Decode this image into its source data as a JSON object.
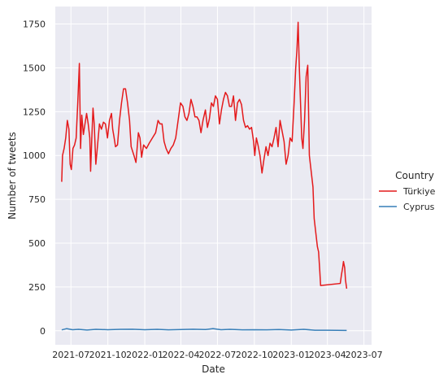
{
  "chart_data": {
    "type": "line",
    "title": "",
    "xlabel": "Date",
    "ylabel": "Number of tweets",
    "ylim": [
      -80,
      1850
    ],
    "xlim": [
      "2021-05-23",
      "2023-07-20"
    ],
    "grid": true,
    "legend": {
      "title": "Country",
      "placement": "right"
    },
    "x_ticks": [
      "2021-07",
      "2021-10",
      "2022-01",
      "2022-04",
      "2022-07",
      "2022-10",
      "2023-01",
      "2023-04",
      "2023-07"
    ],
    "y_ticks": [
      0,
      250,
      500,
      750,
      1000,
      1250,
      1500,
      1750
    ],
    "series": [
      {
        "name": "Türkiye",
        "color": "#e41a1c",
        "points": [
          [
            "2021-06-08",
            850
          ],
          [
            "2021-06-10",
            1000
          ],
          [
            "2021-06-14",
            1040
          ],
          [
            "2021-06-18",
            1100
          ],
          [
            "2021-06-22",
            1200
          ],
          [
            "2021-06-26",
            1150
          ],
          [
            "2021-06-29",
            950
          ],
          [
            "2021-07-02",
            920
          ],
          [
            "2021-07-06",
            1040
          ],
          [
            "2021-07-10",
            1060
          ],
          [
            "2021-07-14",
            1100
          ],
          [
            "2021-07-18",
            1300
          ],
          [
            "2021-07-22",
            1525
          ],
          [
            "2021-07-25",
            1040
          ],
          [
            "2021-07-28",
            1230
          ],
          [
            "2021-08-01",
            1120
          ],
          [
            "2021-08-05",
            1180
          ],
          [
            "2021-08-09",
            1240
          ],
          [
            "2021-08-13",
            1180
          ],
          [
            "2021-08-17",
            1100
          ],
          [
            "2021-08-19",
            910
          ],
          [
            "2021-08-22",
            1100
          ],
          [
            "2021-08-25",
            1270
          ],
          [
            "2021-08-28",
            1180
          ],
          [
            "2021-09-01",
            950
          ],
          [
            "2021-09-05",
            1050
          ],
          [
            "2021-09-10",
            1180
          ],
          [
            "2021-09-15",
            1150
          ],
          [
            "2021-09-20",
            1190
          ],
          [
            "2021-09-25",
            1180
          ],
          [
            "2021-09-30",
            1100
          ],
          [
            "2021-10-05",
            1200
          ],
          [
            "2021-10-10",
            1240
          ],
          [
            "2021-10-13",
            1150
          ],
          [
            "2021-10-16",
            1110
          ],
          [
            "2021-10-20",
            1050
          ],
          [
            "2021-10-25",
            1060
          ],
          [
            "2021-10-30",
            1200
          ],
          [
            "2021-11-04",
            1300
          ],
          [
            "2021-11-09",
            1380
          ],
          [
            "2021-11-14",
            1380
          ],
          [
            "2021-11-19",
            1300
          ],
          [
            "2021-11-24",
            1200
          ],
          [
            "2021-11-28",
            1050
          ],
          [
            "2021-12-05",
            1000
          ],
          [
            "2021-12-10",
            960
          ],
          [
            "2021-12-16",
            1130
          ],
          [
            "2021-12-20",
            1100
          ],
          [
            "2021-12-24",
            990
          ],
          [
            "2021-12-29",
            1060
          ],
          [
            "2022-01-05",
            1040
          ],
          [
            "2022-01-12",
            1070
          ],
          [
            "2022-01-20",
            1100
          ],
          [
            "2022-01-28",
            1130
          ],
          [
            "2022-02-03",
            1200
          ],
          [
            "2022-02-08",
            1180
          ],
          [
            "2022-02-13",
            1180
          ],
          [
            "2022-02-18",
            1080
          ],
          [
            "2022-02-23",
            1040
          ],
          [
            "2022-03-01",
            1010
          ],
          [
            "2022-03-07",
            1040
          ],
          [
            "2022-03-13",
            1060
          ],
          [
            "2022-03-19",
            1100
          ],
          [
            "2022-03-25",
            1200
          ],
          [
            "2022-03-31",
            1300
          ],
          [
            "2022-04-06",
            1280
          ],
          [
            "2022-04-11",
            1220
          ],
          [
            "2022-04-16",
            1200
          ],
          [
            "2022-04-21",
            1240
          ],
          [
            "2022-04-26",
            1320
          ],
          [
            "2022-05-01",
            1280
          ],
          [
            "2022-05-06",
            1220
          ],
          [
            "2022-05-11",
            1220
          ],
          [
            "2022-05-16",
            1200
          ],
          [
            "2022-05-21",
            1130
          ],
          [
            "2022-05-26",
            1200
          ],
          [
            "2022-06-01",
            1260
          ],
          [
            "2022-06-06",
            1160
          ],
          [
            "2022-06-11",
            1210
          ],
          [
            "2022-06-16",
            1300
          ],
          [
            "2022-06-21",
            1280
          ],
          [
            "2022-06-26",
            1340
          ],
          [
            "2022-07-01",
            1320
          ],
          [
            "2022-07-06",
            1180
          ],
          [
            "2022-07-11",
            1260
          ],
          [
            "2022-07-16",
            1320
          ],
          [
            "2022-07-21",
            1360
          ],
          [
            "2022-07-26",
            1340
          ],
          [
            "2022-07-31",
            1280
          ],
          [
            "2022-08-05",
            1280
          ],
          [
            "2022-08-10",
            1340
          ],
          [
            "2022-08-15",
            1200
          ],
          [
            "2022-08-20",
            1300
          ],
          [
            "2022-08-25",
            1320
          ],
          [
            "2022-08-30",
            1290
          ],
          [
            "2022-09-04",
            1200
          ],
          [
            "2022-09-09",
            1160
          ],
          [
            "2022-09-14",
            1170
          ],
          [
            "2022-09-19",
            1150
          ],
          [
            "2022-09-24",
            1160
          ],
          [
            "2022-09-29",
            1080
          ],
          [
            "2022-10-02",
            1000
          ],
          [
            "2022-10-06",
            1100
          ],
          [
            "2022-10-10",
            1060
          ],
          [
            "2022-10-15",
            1000
          ],
          [
            "2022-10-20",
            900
          ],
          [
            "2022-10-25",
            980
          ],
          [
            "2022-10-30",
            1050
          ],
          [
            "2022-11-04",
            1000
          ],
          [
            "2022-11-09",
            1070
          ],
          [
            "2022-11-14",
            1050
          ],
          [
            "2022-11-19",
            1100
          ],
          [
            "2022-11-24",
            1160
          ],
          [
            "2022-11-29",
            1050
          ],
          [
            "2022-12-04",
            1200
          ],
          [
            "2022-12-09",
            1140
          ],
          [
            "2022-12-14",
            1080
          ],
          [
            "2022-12-19",
            950
          ],
          [
            "2022-12-24",
            1000
          ],
          [
            "2022-12-29",
            1100
          ],
          [
            "2023-01-03",
            1080
          ],
          [
            "2023-01-08",
            1300
          ],
          [
            "2023-01-12",
            1500
          ],
          [
            "2023-01-15",
            1600
          ],
          [
            "2023-01-18",
            1760
          ],
          [
            "2023-01-21",
            1500
          ],
          [
            "2023-01-24",
            1300
          ],
          [
            "2023-01-27",
            1100
          ],
          [
            "2023-01-30",
            1040
          ],
          [
            "2023-02-03",
            1200
          ],
          [
            "2023-02-07",
            1450
          ],
          [
            "2023-02-11",
            1515
          ],
          [
            "2023-02-15",
            1000
          ],
          [
            "2023-02-20",
            900
          ],
          [
            "2023-02-24",
            820
          ],
          [
            "2023-02-27",
            640
          ],
          [
            "2023-03-03",
            560
          ],
          [
            "2023-03-07",
            480
          ],
          [
            "2023-03-10",
            450
          ],
          [
            "2023-03-13",
            340
          ],
          [
            "2023-03-15",
            258
          ],
          [
            "2023-05-03",
            270
          ],
          [
            "2023-05-06",
            320
          ],
          [
            "2023-05-09",
            360
          ],
          [
            "2023-05-11",
            395
          ],
          [
            "2023-05-14",
            360
          ],
          [
            "2023-05-16",
            290
          ],
          [
            "2023-05-19",
            240
          ]
        ]
      },
      {
        "name": "Cyprus",
        "color": "#377eb8",
        "points": [
          [
            "2021-06-08",
            5
          ],
          [
            "2021-06-20",
            12
          ],
          [
            "2021-07-05",
            6
          ],
          [
            "2021-07-20",
            8
          ],
          [
            "2021-08-10",
            4
          ],
          [
            "2021-09-01",
            8
          ],
          [
            "2021-10-01",
            6
          ],
          [
            "2021-11-01",
            8
          ],
          [
            "2021-12-01",
            9
          ],
          [
            "2022-01-01",
            6
          ],
          [
            "2022-02-01",
            8
          ],
          [
            "2022-03-01",
            5
          ],
          [
            "2022-04-01",
            7
          ],
          [
            "2022-05-01",
            9
          ],
          [
            "2022-06-01",
            7
          ],
          [
            "2022-06-20",
            12
          ],
          [
            "2022-07-10",
            6
          ],
          [
            "2022-08-01",
            8
          ],
          [
            "2022-09-01",
            5
          ],
          [
            "2022-10-01",
            6
          ],
          [
            "2022-11-01",
            5
          ],
          [
            "2022-12-01",
            7
          ],
          [
            "2023-01-01",
            4
          ],
          [
            "2023-02-01",
            8
          ],
          [
            "2023-03-01",
            3
          ],
          [
            "2023-04-01",
            3
          ],
          [
            "2023-05-19",
            2
          ]
        ]
      }
    ]
  }
}
